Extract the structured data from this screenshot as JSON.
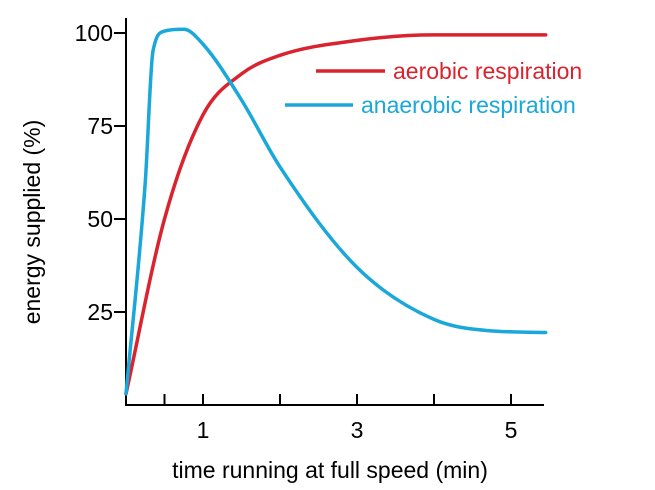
{
  "chart_data": {
    "type": "line",
    "title": "",
    "xlabel": "time running at full speed (min)",
    "ylabel": "energy supplied (%)",
    "xlim": [
      0,
      5.45
    ],
    "ylim": [
      0,
      100
    ],
    "x_ticks": [
      0.5,
      1,
      2,
      3,
      4,
      5
    ],
    "x_tick_labels": [
      {
        "value": 1,
        "label": "1"
      },
      {
        "value": 3,
        "label": "3"
      },
      {
        "value": 5,
        "label": "5"
      }
    ],
    "y_ticks": [
      {
        "value": 25,
        "label": "25"
      },
      {
        "value": 50,
        "label": "50"
      },
      {
        "value": 75,
        "label": "75"
      },
      {
        "value": 100,
        "label": "100"
      }
    ],
    "grid": false,
    "legend_position": "top-right",
    "series": [
      {
        "name": "aerobic respiration",
        "color": "#d9232e",
        "points": [
          {
            "x": 0,
            "y": 3
          },
          {
            "x": 0.5,
            "y": 50
          },
          {
            "x": 1,
            "y": 78
          },
          {
            "x": 1.5,
            "y": 89
          },
          {
            "x": 2,
            "y": 94
          },
          {
            "x": 3,
            "y": 98
          },
          {
            "x": 4,
            "y": 99.5
          },
          {
            "x": 5.45,
            "y": 99.5
          }
        ]
      },
      {
        "name": "anaerobic respiration",
        "color": "#1aa7d9",
        "points": [
          {
            "x": 0,
            "y": 3
          },
          {
            "x": 0.25,
            "y": 60
          },
          {
            "x": 0.35,
            "y": 95
          },
          {
            "x": 0.5,
            "y": 100.5
          },
          {
            "x": 0.75,
            "y": 101
          },
          {
            "x": 1,
            "y": 97
          },
          {
            "x": 1.5,
            "y": 82
          },
          {
            "x": 2,
            "y": 64
          },
          {
            "x": 3,
            "y": 37
          },
          {
            "x": 4,
            "y": 23
          },
          {
            "x": 4.7,
            "y": 20
          },
          {
            "x": 5.45,
            "y": 19.5
          }
        ]
      }
    ]
  }
}
